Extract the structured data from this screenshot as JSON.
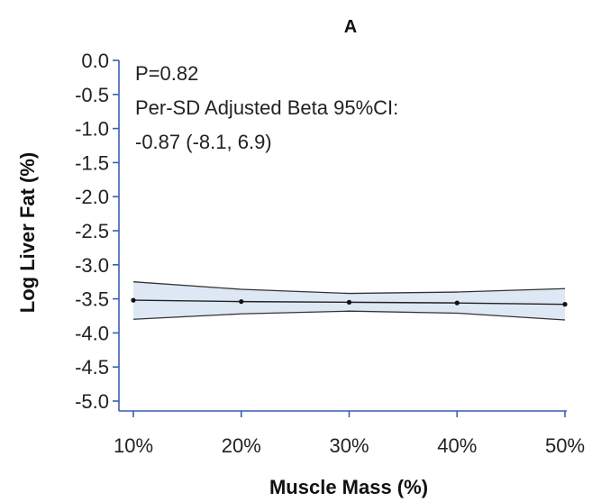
{
  "chart_data": {
    "type": "line",
    "title": "A",
    "xlabel": "Muscle Mass (%)",
    "ylabel": "Log Liver Fat (%)",
    "x": [
      10,
      20,
      30,
      40,
      50
    ],
    "x_tick_labels": [
      "10%",
      "20%",
      "30%",
      "40%",
      "50%"
    ],
    "xlim": [
      10,
      50
    ],
    "ylim": [
      -5.0,
      0.0
    ],
    "y_ticks": [
      0.0,
      -0.5,
      -1.0,
      -1.5,
      -2.0,
      -2.5,
      -3.0,
      -3.5,
      -4.0,
      -4.5,
      -5.0
    ],
    "y_tick_labels": [
      "0.0",
      "-0.5",
      "-1.0",
      "-1.5",
      "-2.0",
      "-2.5",
      "-3.0",
      "-3.5",
      "-4.0",
      "-4.5",
      "-5.0"
    ],
    "series": [
      {
        "y": [
          -3.52,
          -3.54,
          -3.55,
          -3.56,
          -3.58
        ],
        "upper": [
          -3.25,
          -3.36,
          -3.42,
          -3.4,
          -3.35
        ],
        "lower": [
          -3.8,
          -3.72,
          -3.68,
          -3.71,
          -3.81
        ]
      }
    ],
    "annotations": [
      "P=0.82",
      "Per-SD Adjusted Beta 95%CI:",
      "-0.87 (-8.1, 6.9)"
    ],
    "grid": false,
    "colors": {
      "axis": "#3a5fb0",
      "band_fill": "#dde8f4",
      "line": "#222222"
    }
  }
}
